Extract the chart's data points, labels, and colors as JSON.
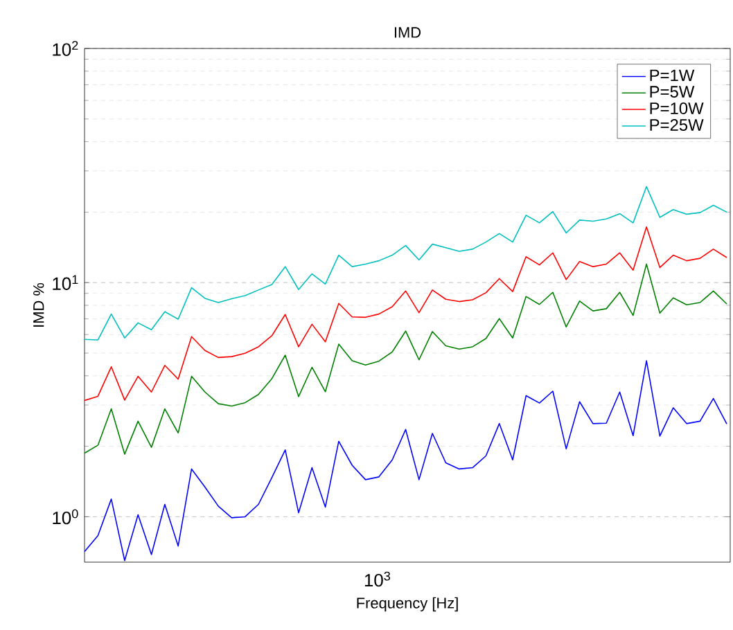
{
  "chart_data": {
    "type": "line",
    "title": "IMD",
    "xlabel": "Frequency [Hz]",
    "ylabel": "IMD %",
    "log": "y",
    "grid": "y",
    "annotations": [
      "10$^{3}$"
    ],
    "legend": "top right",
    "marker": "none",
    "line_style": "solid",
    "ylim": [
      0.64,
      100
    ],
    "yticks": [
      {
        "value": 1,
        "label": "10$^{0}$"
      },
      {
        "value": 10,
        "label": "10$^{1}$"
      },
      {
        "value": 100,
        "label": "10$^{2}$"
      }
    ],
    "categories": [
      null,
      null,
      null,
      null,
      null,
      null,
      null,
      null,
      null,
      null,
      null,
      null,
      null,
      null,
      null,
      null,
      null,
      null,
      null,
      null,
      null,
      null,
      null,
      null,
      null,
      null,
      null,
      null,
      null,
      null,
      null,
      null,
      null,
      null,
      null,
      null,
      null,
      null,
      null,
      null,
      null,
      null,
      null,
      null,
      null,
      null,
      null,
      null,
      null
    ],
    "series": [
      {
        "name": "P=1W",
        "color": "#0000ff",
        "values": [
          0.71,
          0.83,
          1.19,
          0.65,
          1.02,
          0.69,
          1.13,
          0.75,
          1.6,
          1.34,
          1.11,
          0.99,
          1.0,
          1.13,
          1.47,
          1.93,
          1.04,
          1.62,
          1.1,
          2.1,
          1.66,
          1.44,
          1.48,
          1.75,
          2.36,
          1.44,
          2.27,
          1.7,
          1.6,
          1.62,
          1.82,
          2.5,
          1.75,
          3.29,
          3.06,
          3.44,
          1.95,
          3.1,
          2.5,
          2.51,
          3.41,
          2.22,
          4.64,
          2.21,
          2.92,
          2.5,
          2.56,
          3.2,
          2.49
        ]
      },
      {
        "name": "P=5W",
        "color": "#008000",
        "values": [
          1.87,
          2.02,
          2.89,
          1.85,
          2.56,
          1.98,
          2.89,
          2.28,
          3.98,
          3.41,
          3.04,
          2.97,
          3.07,
          3.33,
          3.89,
          4.9,
          3.26,
          4.35,
          3.42,
          5.46,
          4.64,
          4.45,
          4.62,
          5.06,
          6.21,
          4.68,
          6.18,
          5.37,
          5.2,
          5.32,
          5.77,
          7.02,
          5.8,
          8.72,
          8.07,
          9.09,
          6.47,
          8.34,
          7.57,
          7.74,
          9.09,
          7.24,
          12.0,
          7.41,
          8.61,
          8.04,
          8.22,
          9.21,
          8.11
        ]
      },
      {
        "name": "P=10W",
        "color": "#ff0000",
        "values": [
          3.14,
          3.27,
          4.37,
          3.15,
          3.98,
          3.41,
          4.43,
          3.87,
          5.88,
          5.13,
          4.79,
          4.83,
          4.99,
          5.32,
          5.93,
          7.31,
          5.32,
          6.64,
          5.59,
          8.15,
          7.14,
          7.11,
          7.34,
          7.89,
          9.21,
          7.44,
          9.3,
          8.49,
          8.3,
          8.45,
          9.05,
          10.4,
          9.16,
          12.9,
          11.9,
          13.4,
          10.3,
          12.3,
          11.7,
          12.0,
          13.4,
          11.3,
          17.3,
          11.6,
          13.1,
          12.4,
          12.7,
          13.9,
          12.8
        ]
      },
      {
        "name": "P=25W",
        "color": "#00bfbf",
        "values": [
          5.72,
          5.69,
          7.34,
          5.8,
          6.73,
          6.29,
          7.51,
          6.98,
          9.51,
          8.57,
          8.22,
          8.53,
          8.8,
          9.3,
          9.81,
          11.7,
          9.34,
          10.9,
          9.86,
          13.1,
          11.7,
          12.0,
          12.4,
          13.1,
          14.4,
          12.5,
          14.6,
          14.1,
          13.6,
          13.9,
          14.9,
          16.2,
          14.9,
          19.4,
          18.0,
          20.1,
          16.3,
          18.5,
          18.3,
          18.7,
          19.7,
          18.0,
          25.7,
          19.0,
          20.5,
          19.6,
          19.9,
          21.4,
          20.0
        ]
      }
    ]
  }
}
